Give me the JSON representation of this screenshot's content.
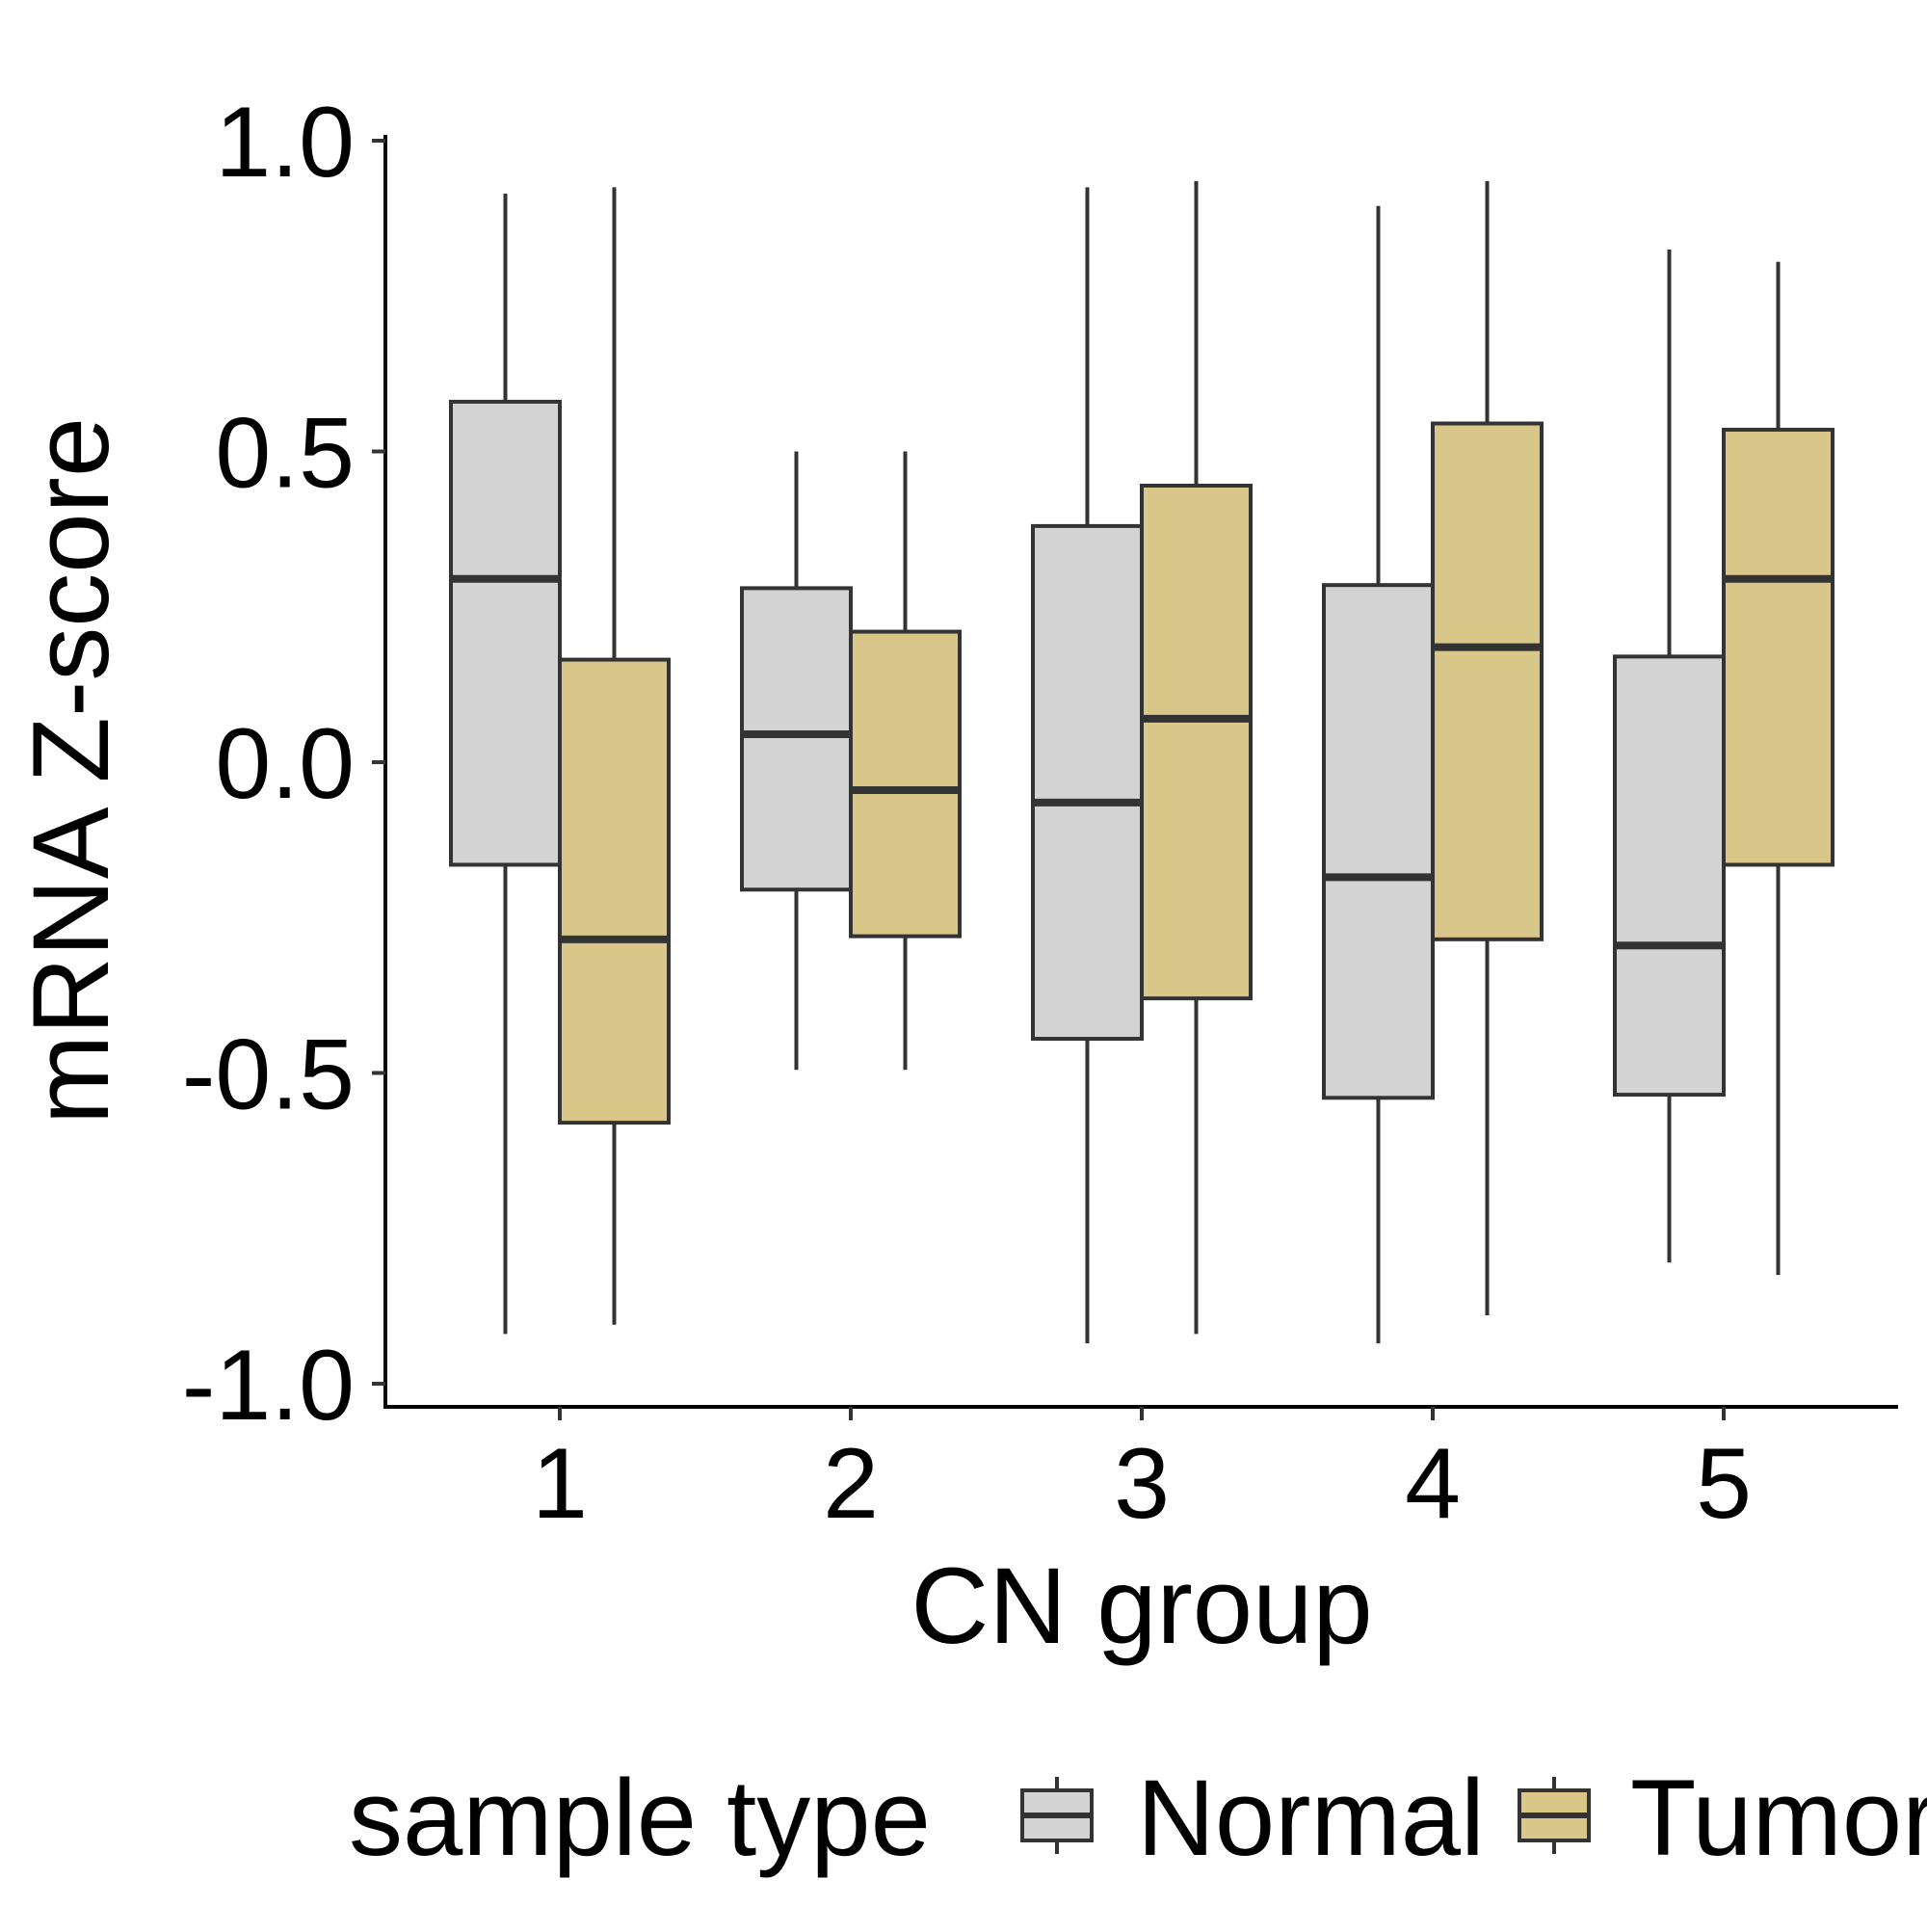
{
  "chart_data": {
    "type": "boxplot",
    "xlabel": "CN group",
    "ylabel": "mRNA Z-score",
    "categories": [
      "1",
      "2",
      "3",
      "4",
      "5"
    ],
    "ylim": [
      -1.03,
      1.03
    ],
    "yticks": [
      1.0,
      0.5,
      0.0,
      -0.5,
      -1.0
    ],
    "ytick_labels": [
      "1.0",
      "0.5",
      "0.0",
      "-0.5",
      "-1.0"
    ],
    "legend": {
      "title": "sample type",
      "position": "bottom"
    },
    "series": [
      {
        "name": "Normal",
        "color": "#d3d3d3",
        "boxes": [
          {
            "whislo": -0.92,
            "q1": -0.165,
            "med": 0.295,
            "q3": 0.58,
            "whishi": 0.915
          },
          {
            "whislo": -0.495,
            "q1": -0.205,
            "med": 0.045,
            "q3": 0.28,
            "whishi": 0.5
          },
          {
            "whislo": -0.935,
            "q1": -0.445,
            "med": -0.065,
            "q3": 0.38,
            "whishi": 0.925
          },
          {
            "whislo": -0.935,
            "q1": -0.54,
            "med": -0.185,
            "q3": 0.285,
            "whishi": 0.895
          },
          {
            "whislo": -0.805,
            "q1": -0.535,
            "med": -0.295,
            "q3": 0.17,
            "whishi": 0.825
          }
        ]
      },
      {
        "name": "Tumor",
        "color": "#d9c78a",
        "boxes": [
          {
            "whislo": -0.905,
            "q1": -0.58,
            "med": -0.285,
            "q3": 0.165,
            "whishi": 0.925
          },
          {
            "whislo": -0.495,
            "q1": -0.28,
            "med": -0.045,
            "q3": 0.21,
            "whishi": 0.5
          },
          {
            "whislo": -0.92,
            "q1": -0.38,
            "med": 0.07,
            "q3": 0.445,
            "whishi": 0.935
          },
          {
            "whislo": -0.89,
            "q1": -0.285,
            "med": 0.185,
            "q3": 0.545,
            "whishi": 0.935
          },
          {
            "whislo": -0.825,
            "q1": -0.165,
            "med": 0.295,
            "q3": 0.535,
            "whishi": 0.805
          }
        ]
      }
    ]
  }
}
